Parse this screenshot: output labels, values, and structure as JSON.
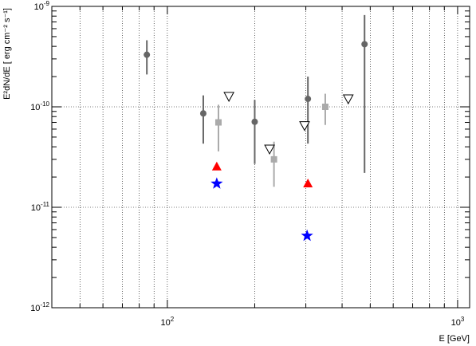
{
  "chart_data": {
    "type": "scatter",
    "title": "",
    "xlabel": "E [GeV]",
    "ylabel": "E²dN/dE [ erg cm⁻² s⁻¹]",
    "xscale": "log",
    "yscale": "log",
    "xlim": [
      40,
      1100
    ],
    "ylim": [
      1e-12,
      1e-09
    ],
    "grid": true,
    "x_tick_labels": [
      {
        "value": 100,
        "mantissa": "10",
        "exp": "2"
      },
      {
        "value": 1000,
        "mantissa": "10",
        "exp": "3"
      }
    ],
    "y_tick_labels": [
      {
        "value": 1e-12,
        "mantissa": "10",
        "exp": "-12"
      },
      {
        "value": 1e-11,
        "mantissa": "10",
        "exp": "-11"
      },
      {
        "value": 1e-10,
        "mantissa": "10",
        "exp": "-10"
      },
      {
        "value": 1e-09,
        "mantissa": "10",
        "exp": "-9"
      }
    ],
    "series": [
      {
        "marker": "circle",
        "color": "#666666",
        "points": [
          {
            "x": 85,
            "y": 3.3e-10,
            "ylo": 2.1e-10,
            "yhi": 4.6e-10
          },
          {
            "x": 133,
            "y": 8.6e-11,
            "ylo": 4.3e-11,
            "yhi": 1.3e-10
          },
          {
            "x": 200,
            "y": 7.1e-11,
            "ylo": 2.7e-11,
            "yhi": 1.17e-10
          },
          {
            "x": 305,
            "y": 1.2e-10,
            "ylo": 4.3e-11,
            "yhi": 2e-10
          },
          {
            "x": 478,
            "y": 4.2e-10,
            "ylo": 2.2e-11,
            "yhi": 8.2e-10
          }
        ]
      },
      {
        "marker": "square",
        "color": "#aaaaaa",
        "points": [
          {
            "x": 150,
            "y": 7e-11,
            "ylo": 3.6e-11,
            "yhi": 1.05e-10
          },
          {
            "x": 233,
            "y": 3e-11,
            "ylo": 1.6e-11,
            "yhi": 4.5e-11
          },
          {
            "x": 350,
            "y": 1e-10,
            "ylo": 6.6e-11,
            "yhi": 1.35e-10
          }
        ]
      },
      {
        "marker": "open-triangle-down",
        "color": "#000000",
        "points": [
          {
            "x": 163,
            "y": 1.27e-10
          },
          {
            "x": 225,
            "y": 3.8e-11
          },
          {
            "x": 297,
            "y": 6.5e-11
          },
          {
            "x": 420,
            "y": 1.2e-10
          }
        ]
      },
      {
        "marker": "triangle-up",
        "color": "#ff0000",
        "points": [
          {
            "x": 148,
            "y": 2.55e-11
          },
          {
            "x": 305,
            "y": 1.73e-11
          }
        ]
      },
      {
        "marker": "star",
        "color": "#0000ff",
        "points": [
          {
            "x": 148,
            "y": 1.72e-11
          },
          {
            "x": 303,
            "y": 5.2e-12
          }
        ]
      }
    ]
  }
}
